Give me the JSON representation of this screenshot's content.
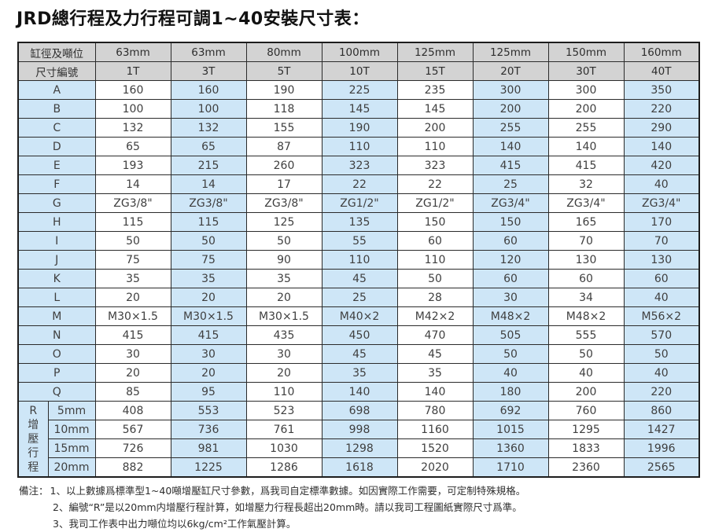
{
  "title": "JRD總行程及力行程可調1~40安裝尺寸表：",
  "table": {
    "header_row1_label": "缸徑及噸位",
    "header_row2_label": "尺寸編號",
    "diameters": [
      "63mm",
      "63mm",
      "80mm",
      "100mm",
      "125mm",
      "125mm",
      "150mm",
      "160mm"
    ],
    "tonnages": [
      "1T",
      "3T",
      "5T",
      "10T",
      "15T",
      "20T",
      "30T",
      "40T"
    ],
    "rows": [
      {
        "label": "A",
        "values": [
          "160",
          "160",
          "190",
          "225",
          "235",
          "300",
          "300",
          "350"
        ]
      },
      {
        "label": "B",
        "values": [
          "100",
          "100",
          "118",
          "145",
          "145",
          "200",
          "200",
          "220"
        ]
      },
      {
        "label": "C",
        "values": [
          "132",
          "132",
          "155",
          "190",
          "200",
          "255",
          "255",
          "290"
        ]
      },
      {
        "label": "D",
        "values": [
          "65",
          "65",
          "87",
          "110",
          "110",
          "140",
          "140",
          "140"
        ]
      },
      {
        "label": "E",
        "values": [
          "193",
          "215",
          "260",
          "323",
          "323",
          "415",
          "415",
          "420"
        ]
      },
      {
        "label": "F",
        "values": [
          "14",
          "14",
          "17",
          "22",
          "22",
          "25",
          "32",
          "40"
        ]
      },
      {
        "label": "G",
        "values": [
          "ZG3/8\"",
          "ZG3/8\"",
          "ZG3/8\"",
          "ZG1/2\"",
          "ZG1/2\"",
          "ZG3/4\"",
          "ZG3/4\"",
          "ZG3/4\""
        ]
      },
      {
        "label": "H",
        "values": [
          "115",
          "115",
          "125",
          "135",
          "150",
          "150",
          "165",
          "170"
        ]
      },
      {
        "label": "I",
        "values": [
          "50",
          "50",
          "50",
          "55",
          "60",
          "60",
          "70",
          "70"
        ]
      },
      {
        "label": "J",
        "values": [
          "75",
          "75",
          "90",
          "110",
          "110",
          "120",
          "130",
          "130"
        ]
      },
      {
        "label": "K",
        "values": [
          "35",
          "35",
          "35",
          "45",
          "50",
          "60",
          "60",
          "60"
        ]
      },
      {
        "label": "L",
        "values": [
          "20",
          "20",
          "20",
          "25",
          "28",
          "30",
          "34",
          "40"
        ]
      },
      {
        "label": "M",
        "values": [
          "M30×1.5",
          "M30×1.5",
          "M30×1.5",
          "M40×2",
          "M42×2",
          "M48×2",
          "M48×2",
          "M56×2"
        ]
      },
      {
        "label": "N",
        "values": [
          "415",
          "415",
          "435",
          "450",
          "470",
          "505",
          "555",
          "570"
        ]
      },
      {
        "label": "O",
        "values": [
          "30",
          "30",
          "30",
          "45",
          "45",
          "50",
          "50",
          "50"
        ]
      },
      {
        "label": "P",
        "values": [
          "20",
          "20",
          "20",
          "35",
          "35",
          "40",
          "40",
          "40"
        ]
      },
      {
        "label": "Q",
        "values": [
          "85",
          "95",
          "110",
          "140",
          "140",
          "180",
          "200",
          "220"
        ]
      }
    ],
    "r_section": {
      "label": "R增壓行程",
      "label_chars": [
        "R",
        "增",
        "壓",
        "行",
        "程"
      ],
      "rows": [
        {
          "label": "5mm",
          "values": [
            "408",
            "553",
            "523",
            "698",
            "780",
            "692",
            "760",
            "860"
          ]
        },
        {
          "label": "10mm",
          "values": [
            "567",
            "736",
            "761",
            "998",
            "1160",
            "1015",
            "1295",
            "1427"
          ]
        },
        {
          "label": "15mm",
          "values": [
            "726",
            "981",
            "1030",
            "1298",
            "1520",
            "1360",
            "1833",
            "1996"
          ]
        },
        {
          "label": "20mm",
          "values": [
            "882",
            "1225",
            "1286",
            "1618",
            "2020",
            "1710",
            "2360",
            "2565"
          ]
        }
      ]
    }
  },
  "notes": {
    "prefix": "備注：",
    "items": [
      "1、以上數據爲標準型1~40噸增壓缸尺寸參數，爲我司自定標準數據。如因實際工作需要，可定制特殊規格。",
      "2、編號“R”是以20mm内增壓行程計算，如增壓力行程長超出20mm時。請以我司工程圖紙實際尺寸爲準。",
      "3、我司工作表中出力噸位均以6kg/cm²工作氣壓計算。"
    ]
  },
  "colors": {
    "header_bg": "#d3d3d3",
    "accent_blue": "#cee6f7",
    "border": "#2b2b2b",
    "text": "#3f3f3f"
  }
}
